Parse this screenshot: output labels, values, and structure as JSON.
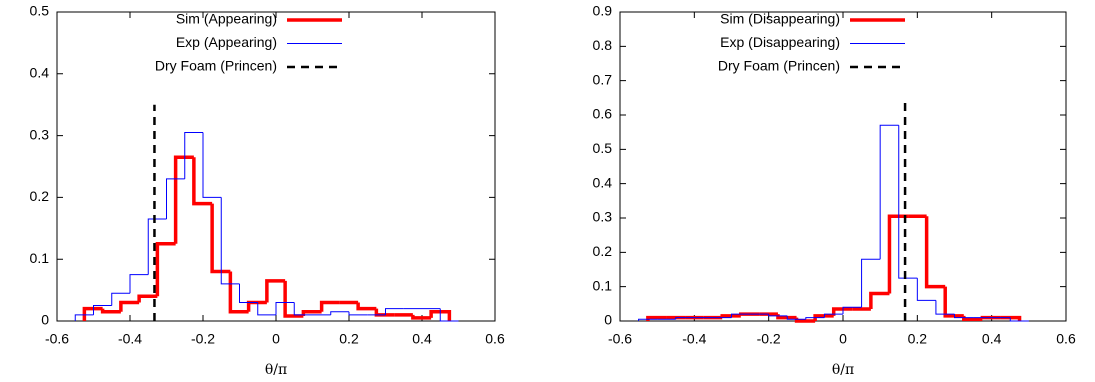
{
  "chart_data": [
    {
      "type": "histogram",
      "xlabel": "θ/π",
      "xlim": [
        -0.6,
        0.6
      ],
      "xticks": [
        -0.6,
        -0.4,
        -0.2,
        0,
        0.2,
        0.4,
        0.6
      ],
      "ylim": [
        0,
        0.5
      ],
      "yticks": [
        0,
        0.1,
        0.2,
        0.3,
        0.4,
        0.5
      ],
      "legend": "top-left",
      "series": [
        {
          "name": "Sim (Appearing)",
          "color": "#ff0000",
          "bins": [
            -0.525,
            -0.475,
            -0.425,
            -0.375,
            -0.325,
            -0.275,
            -0.225,
            -0.175,
            -0.125,
            -0.075,
            -0.025,
            0.025,
            0.075,
            0.125,
            0.175,
            0.225,
            0.275,
            0.325,
            0.375,
            0.425,
            0.475
          ],
          "values": [
            0.02,
            0.015,
            0.03,
            0.04,
            0.125,
            0.265,
            0.19,
            0.08,
            0.015,
            0.03,
            0.065,
            0.008,
            0.015,
            0.03,
            0.03,
            0.02,
            0.01,
            0.01,
            0.005,
            0.015
          ]
        },
        {
          "name": "Exp (Appearing)",
          "color": "#0000ff",
          "bins": [
            -0.55,
            -0.5,
            -0.45,
            -0.4,
            -0.35,
            -0.3,
            -0.25,
            -0.2,
            -0.15,
            -0.1,
            -0.05,
            0,
            0.05,
            0.1,
            0.15,
            0.2,
            0.25,
            0.3,
            0.35,
            0.4,
            0.45,
            0.5
          ],
          "values": [
            0.01,
            0.025,
            0.045,
            0.075,
            0.165,
            0.23,
            0.305,
            0.2,
            0.06,
            0.03,
            0.01,
            0.03,
            0.01,
            0.01,
            0.015,
            0.01,
            0.01,
            0.02,
            0.02,
            0.02,
            0.0
          ]
        },
        {
          "name": "Dry Foam (Princen)",
          "color": "#000000",
          "x": -0.333,
          "values": [
            0,
            0.35
          ]
        }
      ]
    },
    {
      "type": "histogram",
      "xlabel": "θ/π",
      "xlim": [
        -0.6,
        0.6
      ],
      "xticks": [
        -0.6,
        -0.4,
        -0.2,
        0,
        0.2,
        0.4,
        0.6
      ],
      "ylim": [
        0,
        0.9
      ],
      "yticks": [
        0,
        0.1,
        0.2,
        0.3,
        0.4,
        0.5,
        0.6,
        0.7,
        0.8,
        0.9
      ],
      "legend": "top-left",
      "series": [
        {
          "name": "Sim (Disappearing)",
          "color": "#ff0000",
          "bins": [
            -0.525,
            -0.475,
            -0.425,
            -0.375,
            -0.325,
            -0.275,
            -0.225,
            -0.175,
            -0.125,
            -0.075,
            -0.025,
            0.025,
            0.075,
            0.125,
            0.175,
            0.225,
            0.275,
            0.325,
            0.375,
            0.425,
            0.475
          ],
          "values": [
            0.01,
            0.01,
            0.01,
            0.01,
            0.015,
            0.02,
            0.02,
            0.01,
            0.0,
            0.015,
            0.035,
            0.035,
            0.08,
            0.305,
            0.305,
            0.1,
            0.015,
            0.005,
            0.01,
            0.01
          ]
        },
        {
          "name": "Exp (Disappearing)",
          "color": "#0000ff",
          "bins": [
            -0.55,
            -0.5,
            -0.45,
            -0.4,
            -0.35,
            -0.3,
            -0.25,
            -0.2,
            -0.15,
            -0.1,
            -0.05,
            0,
            0.05,
            0.1,
            0.15,
            0.2,
            0.25,
            0.3,
            0.35,
            0.4,
            0.45,
            0.5
          ],
          "values": [
            0.005,
            0.005,
            0.01,
            0.01,
            0.01,
            0.02,
            0.02,
            0.015,
            0.005,
            0.01,
            0.02,
            0.04,
            0.18,
            0.57,
            0.125,
            0.06,
            0.02,
            0.01,
            0.01,
            0.01,
            0.0
          ]
        },
        {
          "name": "Dry Foam (Princen)",
          "color": "#000000",
          "x": 0.167,
          "values": [
            0,
            0.65
          ]
        }
      ]
    }
  ]
}
